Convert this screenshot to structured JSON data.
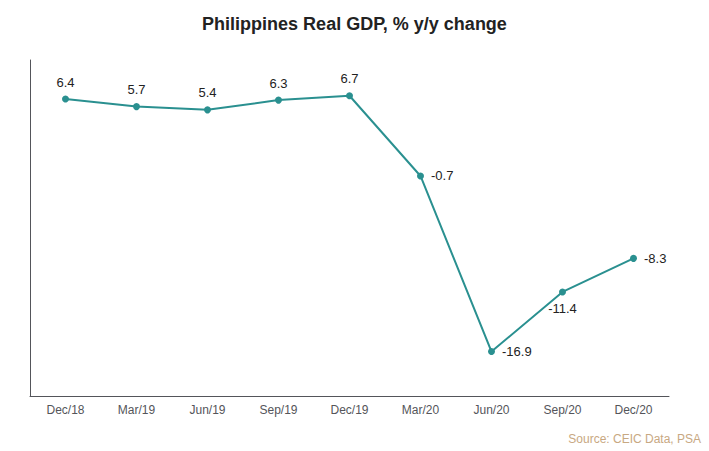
{
  "chart_data": {
    "type": "line",
    "title": "Philippines Real GDP, % y/y change",
    "categories": [
      "Dec/18",
      "Mar/19",
      "Jun/19",
      "Sep/19",
      "Dec/19",
      "Mar/20",
      "Jun/20",
      "Sep/20",
      "Dec/20"
    ],
    "values": [
      6.4,
      5.7,
      5.4,
      6.3,
      6.7,
      -0.7,
      -16.9,
      -11.4,
      -8.3
    ],
    "color": "#2a9090",
    "marker": "circle",
    "ylim": [
      -21,
      10
    ],
    "grid": false,
    "data_labels": true,
    "tick_labels": "x",
    "annotations": [
      {
        "text": "Source: CEIC Data, PSA",
        "color": "#c8a882"
      }
    ]
  }
}
